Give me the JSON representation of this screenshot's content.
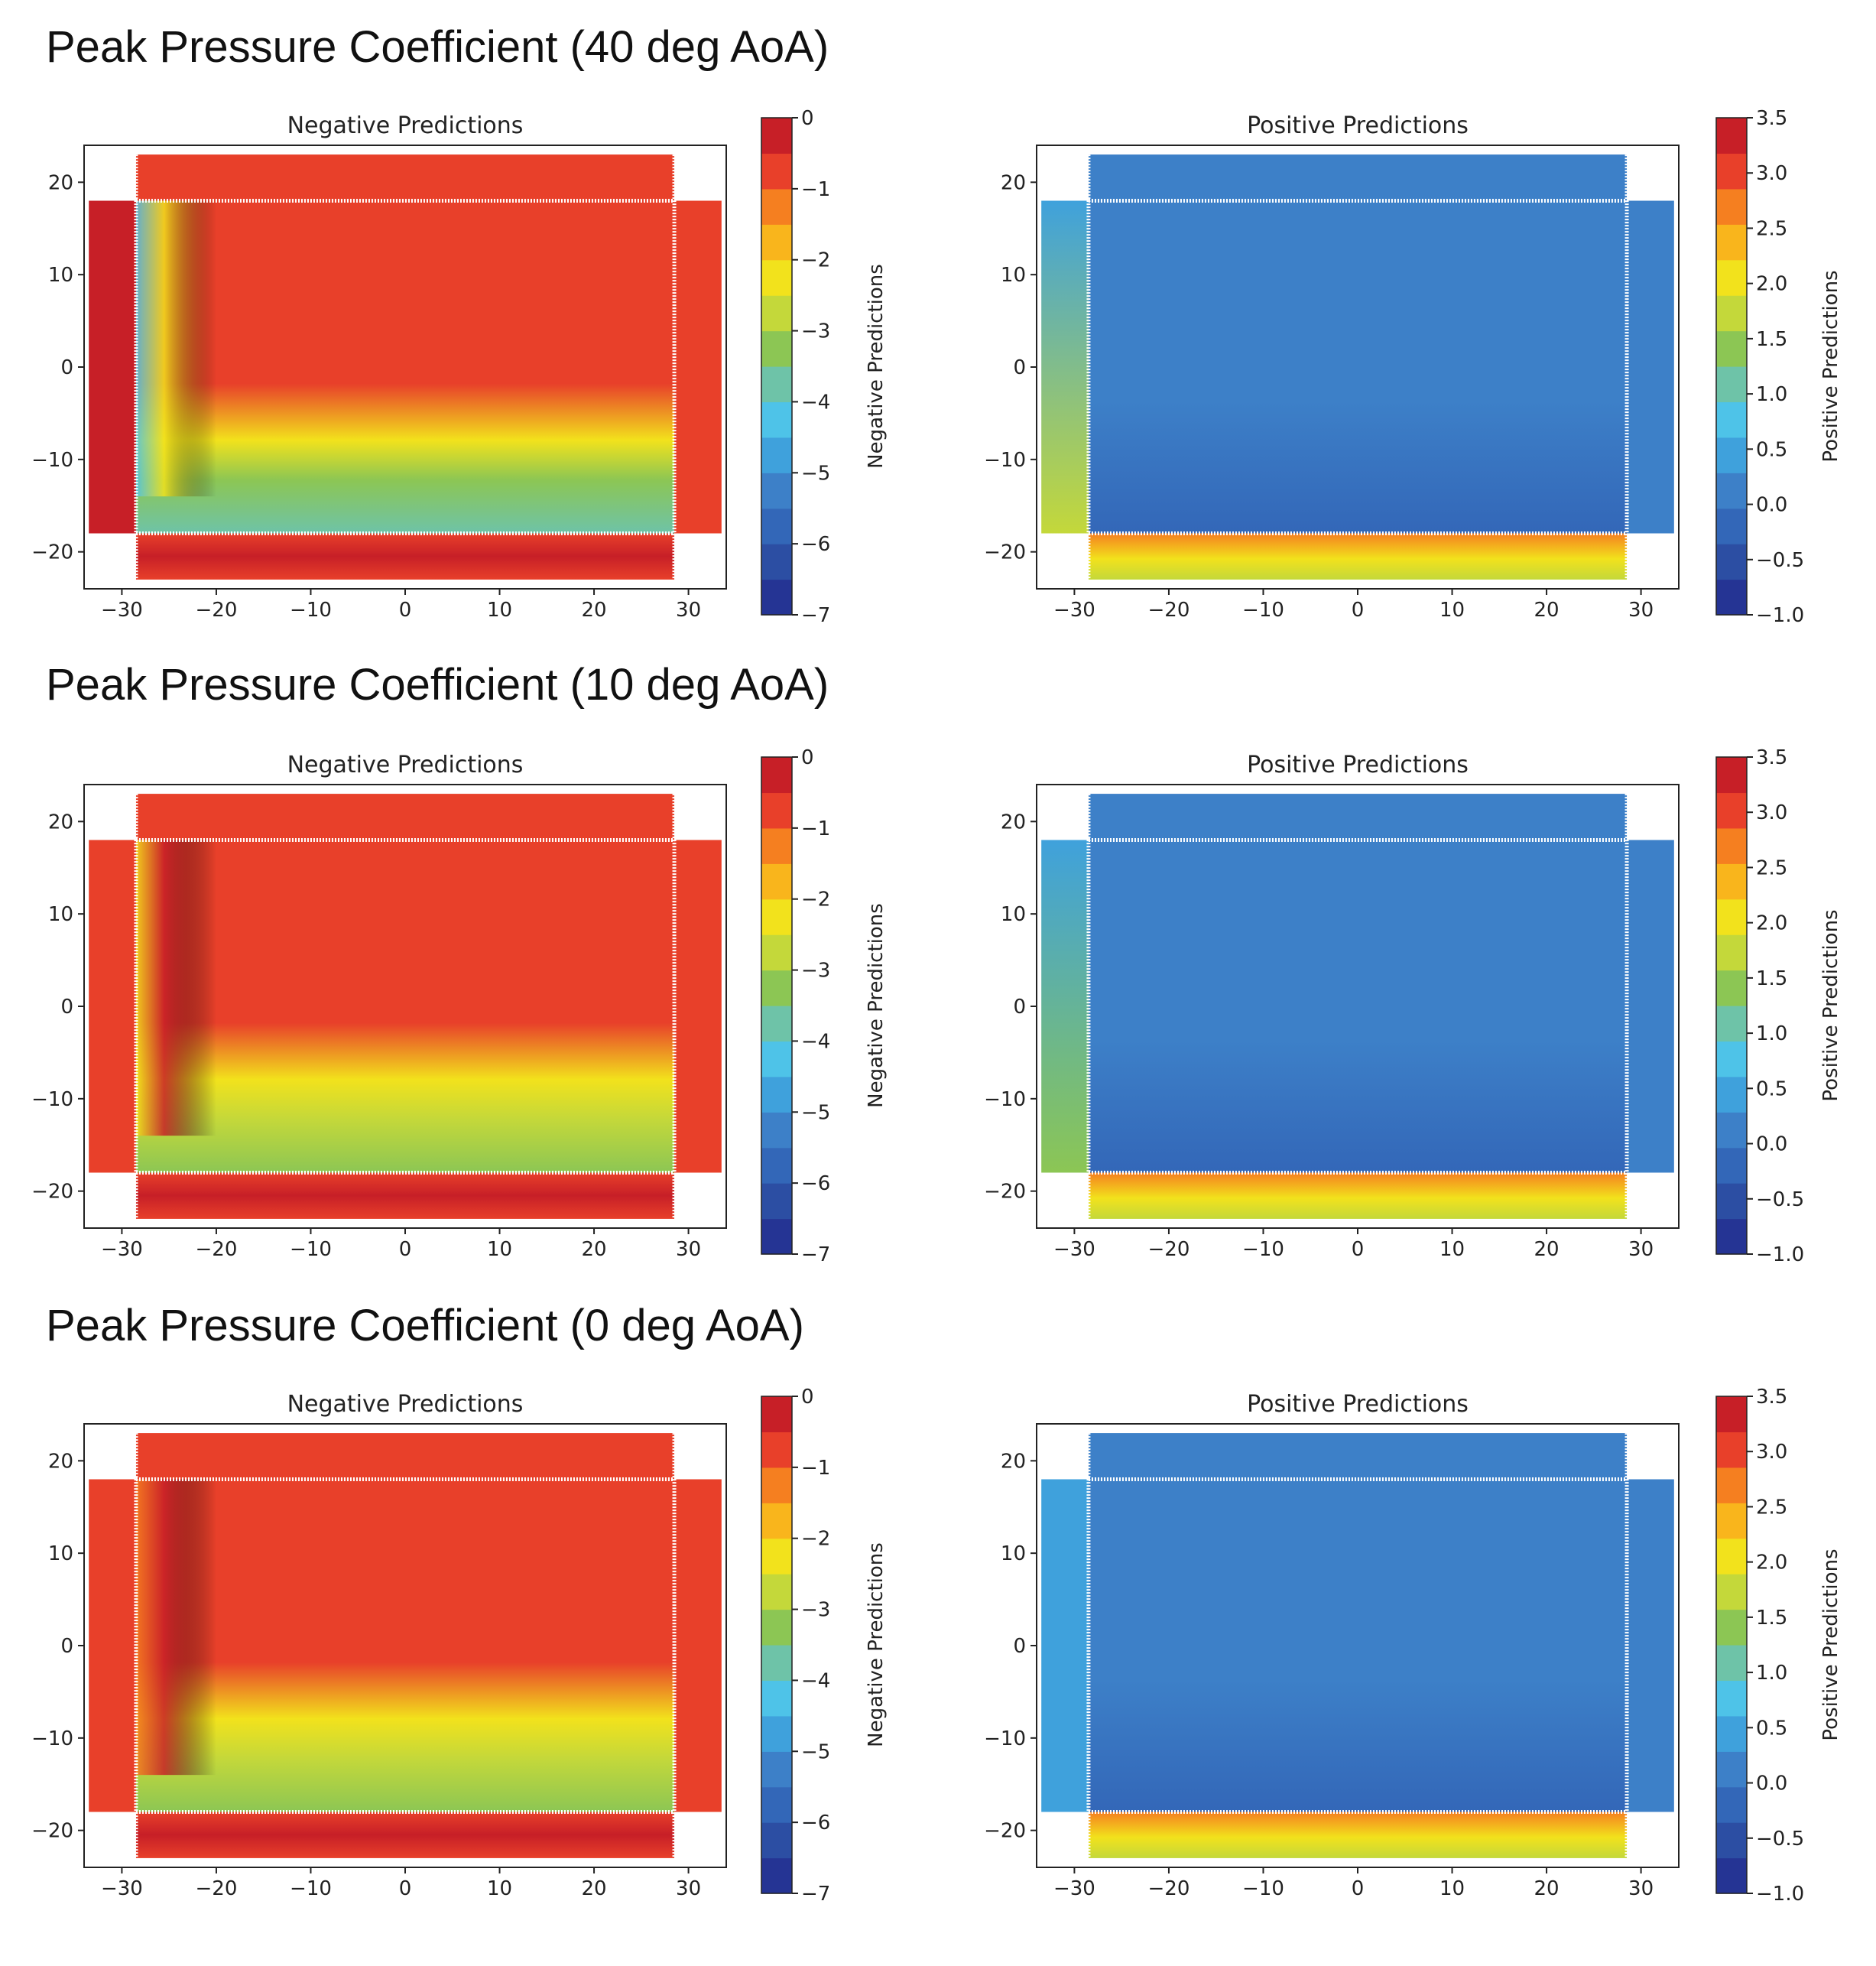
{
  "sections": [
    {
      "title": "Peak Pressure Coefficient (40 deg AoA)",
      "aoa_deg": 40
    },
    {
      "title": "Peak Pressure Coefficient (10 deg AoA)",
      "aoa_deg": 10
    },
    {
      "title": "Peak Pressure Coefficient (0 deg AoA)",
      "aoa_deg": 0
    }
  ],
  "chart_data": [
    {
      "type": "heatmap",
      "panel": "negative",
      "aoa_deg": 40,
      "title": "Negative Predictions",
      "xlim": [
        -34,
        34
      ],
      "ylim": [
        -24,
        24
      ],
      "xticks": [
        -30,
        -20,
        -10,
        0,
        10,
        20,
        30
      ],
      "yticks": [
        -20,
        -10,
        0,
        10,
        20
      ],
      "xtick_labels": [
        "−30",
        "−20",
        "−10",
        "0",
        "10",
        "20",
        "30"
      ],
      "ytick_labels": [
        "−20",
        "−10",
        "0",
        "10",
        "20"
      ],
      "colorbar": {
        "label": "Negative Predictions",
        "min": -7,
        "max": 0,
        "ticks": [
          0,
          -1,
          -2,
          -3,
          -4,
          -5,
          -6,
          -7
        ],
        "tick_labels": [
          "0",
          "−1",
          "−2",
          "−3",
          "−4",
          "−5",
          "−6",
          "−7"
        ]
      },
      "faces": {
        "roof": -1.0,
        "windward_wall_upper": -0.9,
        "windward_wall_lower": -0.15,
        "left_wall": -0.4,
        "right_wall": -0.8,
        "leading_edge_min": -4.5,
        "bottom_band_min": -3.8
      }
    },
    {
      "type": "heatmap",
      "panel": "positive",
      "aoa_deg": 40,
      "title": "Positive Predictions",
      "xlim": [
        -34,
        34
      ],
      "ylim": [
        -24,
        24
      ],
      "xticks": [
        -30,
        -20,
        -10,
        0,
        10,
        20,
        30
      ],
      "yticks": [
        -20,
        -10,
        0,
        10,
        20
      ],
      "xtick_labels": [
        "−30",
        "−20",
        "−10",
        "0",
        "10",
        "20",
        "30"
      ],
      "ytick_labels": [
        "−20",
        "−10",
        "0",
        "10",
        "20"
      ],
      "colorbar": {
        "label": "Positive Predictions",
        "min": -1.0,
        "max": 3.5,
        "ticks": [
          3.5,
          3.0,
          2.5,
          2.0,
          1.5,
          1.0,
          0.5,
          0.0,
          -0.5,
          -1.0
        ],
        "tick_labels": [
          "3.5",
          "3.0",
          "2.5",
          "2.0",
          "1.5",
          "1.0",
          "0.5",
          "0.0",
          "−0.5",
          "−1.0"
        ]
      },
      "faces": {
        "roof": 0.1,
        "top_wall": 0.1,
        "left_wall_upper": 0.6,
        "left_wall_lower": 1.6,
        "right_wall": 0.15,
        "windward_wall": 2.6
      }
    },
    {
      "type": "heatmap",
      "panel": "negative",
      "aoa_deg": 10,
      "title": "Negative Predictions",
      "xlim": [
        -34,
        34
      ],
      "ylim": [
        -24,
        24
      ],
      "xticks": [
        -30,
        -20,
        -10,
        0,
        10,
        20,
        30
      ],
      "yticks": [
        -20,
        -10,
        0,
        10,
        20
      ],
      "xtick_labels": [
        "−30",
        "−20",
        "−10",
        "0",
        "10",
        "20",
        "30"
      ],
      "ytick_labels": [
        "−20",
        "−10",
        "0",
        "10",
        "20"
      ],
      "colorbar": {
        "label": "Negative Predictions",
        "min": -7,
        "max": 0,
        "ticks": [
          0,
          -1,
          -2,
          -3,
          -4,
          -5,
          -6,
          -7
        ],
        "tick_labels": [
          "0",
          "−1",
          "−2",
          "−3",
          "−4",
          "−5",
          "−6",
          "−7"
        ]
      },
      "faces": {
        "roof": -1.0,
        "windward_wall_upper": -0.9,
        "windward_wall_lower": -0.15,
        "left_wall": -0.6,
        "right_wall": -0.8,
        "leading_edge_min": -2.5,
        "bottom_band_min": -3.5
      }
    },
    {
      "type": "heatmap",
      "panel": "positive",
      "aoa_deg": 10,
      "title": "Positive Predictions",
      "xlim": [
        -34,
        34
      ],
      "ylim": [
        -24,
        24
      ],
      "xticks": [
        -30,
        -20,
        -10,
        0,
        10,
        20,
        30
      ],
      "yticks": [
        -20,
        -10,
        0,
        10,
        20
      ],
      "xtick_labels": [
        "−30",
        "−20",
        "−10",
        "0",
        "10",
        "20",
        "30"
      ],
      "ytick_labels": [
        "−20",
        "−10",
        "0",
        "10",
        "20"
      ],
      "colorbar": {
        "label": "Positive Predictions",
        "min": -1.0,
        "max": 3.5,
        "ticks": [
          3.5,
          3.0,
          2.5,
          2.0,
          1.5,
          1.0,
          0.5,
          0.0,
          -0.5,
          -1.0
        ],
        "tick_labels": [
          "3.5",
          "3.0",
          "2.5",
          "2.0",
          "1.5",
          "1.0",
          "0.5",
          "0.0",
          "−0.5",
          "−1.0"
        ]
      },
      "faces": {
        "roof": 0.1,
        "top_wall": 0.1,
        "left_wall_upper": 0.6,
        "left_wall_lower": 1.3,
        "right_wall": 0.15,
        "windward_wall": 2.6
      }
    },
    {
      "type": "heatmap",
      "panel": "negative",
      "aoa_deg": 0,
      "title": "Negative Predictions",
      "xlim": [
        -34,
        34
      ],
      "ylim": [
        -24,
        24
      ],
      "xticks": [
        -30,
        -20,
        -10,
        0,
        10,
        20,
        30
      ],
      "yticks": [
        -20,
        -10,
        0,
        10,
        20
      ],
      "xtick_labels": [
        "−30",
        "−20",
        "−10",
        "0",
        "10",
        "20",
        "30"
      ],
      "ytick_labels": [
        "−20",
        "−10",
        "0",
        "10",
        "20"
      ],
      "colorbar": {
        "label": "Negative Predictions",
        "min": -7,
        "max": 0,
        "ticks": [
          0,
          -1,
          -2,
          -3,
          -4,
          -5,
          -6,
          -7
        ],
        "tick_labels": [
          "0",
          "−1",
          "−2",
          "−3",
          "−4",
          "−5",
          "−6",
          "−7"
        ]
      },
      "faces": {
        "roof": -1.0,
        "windward_wall_upper": -0.9,
        "windward_wall_lower": -0.15,
        "left_wall": -0.9,
        "right_wall": -0.9,
        "leading_edge_min": -1.2,
        "bottom_band_min": -3.5
      }
    },
    {
      "type": "heatmap",
      "panel": "positive",
      "aoa_deg": 0,
      "title": "Positive Predictions",
      "xlim": [
        -34,
        34
      ],
      "ylim": [
        -24,
        24
      ],
      "xticks": [
        -30,
        -20,
        -10,
        0,
        10,
        20,
        30
      ],
      "yticks": [
        -20,
        -10,
        0,
        10,
        20
      ],
      "xtick_labels": [
        "−30",
        "−20",
        "−10",
        "0",
        "10",
        "20",
        "30"
      ],
      "ytick_labels": [
        "−20",
        "−10",
        "0",
        "10",
        "20"
      ],
      "colorbar": {
        "label": "Positive Predictions",
        "min": -1.0,
        "max": 3.5,
        "ticks": [
          3.5,
          3.0,
          2.5,
          2.0,
          1.5,
          1.0,
          0.5,
          0.0,
          -0.5,
          -1.0
        ],
        "tick_labels": [
          "3.5",
          "3.0",
          "2.5",
          "2.0",
          "1.5",
          "1.0",
          "0.5",
          "0.0",
          "−0.5",
          "−1.0"
        ]
      },
      "faces": {
        "roof": 0.1,
        "top_wall": 0.1,
        "left_wall_upper": 0.4,
        "left_wall_lower": 0.4,
        "right_wall": 0.2,
        "windward_wall": 2.6
      }
    }
  ]
}
